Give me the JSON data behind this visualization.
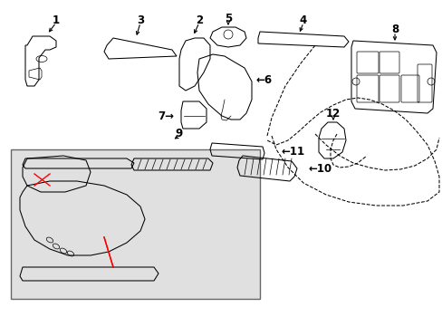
{
  "bg_color": "#ffffff",
  "line_color": "#000000",
  "box_bg": "#e0e0e0",
  "box_edge": "#666666",
  "red_color": "#ff0000",
  "fs_label": 8.5,
  "lw_main": 0.75
}
